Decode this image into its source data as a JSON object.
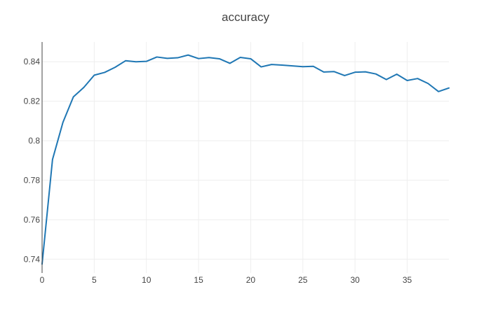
{
  "chart_data": {
    "type": "line",
    "title": "accuracy",
    "xlabel": "",
    "ylabel": "",
    "xlim": [
      0,
      39
    ],
    "ylim": [
      0.733,
      0.85
    ],
    "x_ticks": [
      0,
      5,
      10,
      15,
      20,
      25,
      30,
      35
    ],
    "x_tick_labels": [
      "0",
      "5",
      "10",
      "15",
      "20",
      "25",
      "30",
      "35"
    ],
    "y_ticks": [
      0.74,
      0.76,
      0.78,
      0.8,
      0.82,
      0.84
    ],
    "y_tick_labels": [
      "0.74",
      "0.76",
      "0.78",
      "0.8",
      "0.82",
      "0.84"
    ],
    "grid": true,
    "legend": "none",
    "colors": {
      "series": "#1f77b4",
      "grid": "#eeeeee",
      "axis": "#444444",
      "text": "#444444"
    },
    "series": [
      {
        "x": [
          0,
          1,
          2,
          3,
          4,
          5,
          6,
          7,
          8,
          9,
          10,
          11,
          12,
          13,
          14,
          15,
          16,
          17,
          18,
          19,
          20,
          21,
          22,
          23,
          24,
          25,
          26,
          27,
          28,
          29,
          30,
          31,
          32,
          33,
          34,
          35,
          36,
          37,
          38,
          39
        ],
        "y": [
          0.7375,
          0.7905,
          0.8093,
          0.8222,
          0.827,
          0.8332,
          0.8346,
          0.8372,
          0.8405,
          0.84,
          0.8402,
          0.8424,
          0.8417,
          0.842,
          0.8434,
          0.8416,
          0.8421,
          0.8415,
          0.8392,
          0.8422,
          0.8415,
          0.8374,
          0.8386,
          0.8383,
          0.8379,
          0.8375,
          0.8377,
          0.8348,
          0.835,
          0.833,
          0.8347,
          0.8349,
          0.8338,
          0.831,
          0.8337,
          0.8305,
          0.8315,
          0.829,
          0.8249,
          0.8267
        ]
      }
    ]
  }
}
